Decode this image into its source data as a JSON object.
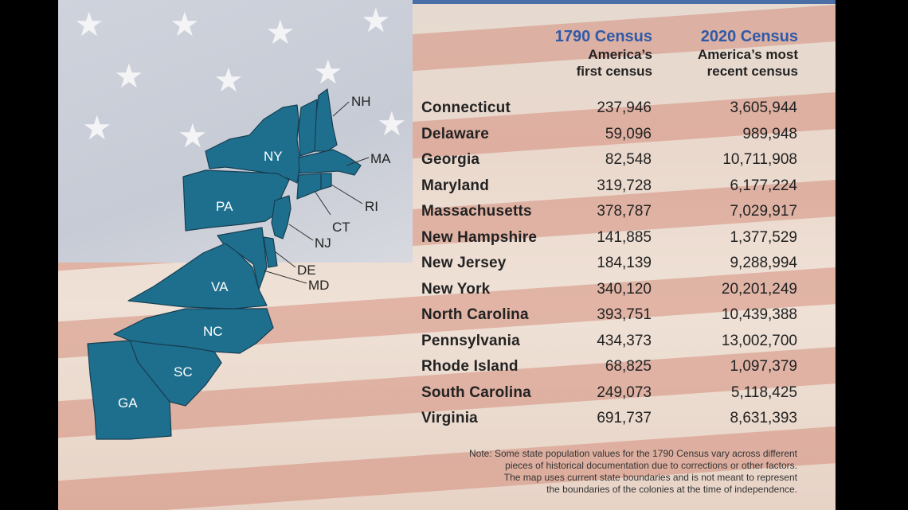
{
  "columns": {
    "c1790": {
      "year": "1790 Census",
      "line1": "America’s",
      "line2": "first census"
    },
    "c2020": {
      "year": "2020 Census",
      "line1": "America’s most",
      "line2": "recent census"
    }
  },
  "rows": [
    {
      "state": "Connecticut",
      "v1790": "237,946",
      "v2020": "3,605,944"
    },
    {
      "state": "Delaware",
      "v1790": "59,096",
      "v2020": "989,948"
    },
    {
      "state": "Georgia",
      "v1790": "82,548",
      "v2020": "10,711,908"
    },
    {
      "state": "Maryland",
      "v1790": "319,728",
      "v2020": "6,177,224"
    },
    {
      "state": "Massachusetts",
      "v1790": "378,787",
      "v2020": "7,029,917"
    },
    {
      "state": "New Hampshire",
      "v1790": "141,885",
      "v2020": "1,377,529"
    },
    {
      "state": "New Jersey",
      "v1790": "184,139",
      "v2020": "9,288,994"
    },
    {
      "state": "New York",
      "v1790": "340,120",
      "v2020": "20,201,249"
    },
    {
      "state": "North Carolina",
      "v1790": "393,751",
      "v2020": "10,439,388"
    },
    {
      "state": "Pennsylvania",
      "v1790": "434,373",
      "v2020": "13,002,700"
    },
    {
      "state": "Rhode Island",
      "v1790": "68,825",
      "v2020": "1,097,379"
    },
    {
      "state": "South Carolina",
      "v1790": "249,073",
      "v2020": "5,118,425"
    },
    {
      "state": "Virginia",
      "v1790": "691,737",
      "v2020": "8,631,393"
    }
  ],
  "map_labels": {
    "NH": "NH",
    "MA": "MA",
    "RI": "RI",
    "CT": "CT",
    "NJ": "NJ",
    "DE": "DE",
    "MD": "MD",
    "NY": "NY",
    "PA": "PA",
    "VA": "VA",
    "NC": "NC",
    "SC": "SC",
    "GA": "GA"
  },
  "note": {
    "lines": [
      "Note: Some state population values for the 1790 Census vary across different",
      "pieces of historical documentation due to corrections or other factors.",
      "The map uses current state boundaries and is not meant to represent",
      "the boundaries of the colonies at the time of independence."
    ]
  },
  "colors": {
    "map_fill": "#1e6f8e",
    "header_year": "#2f5aa8",
    "top_bar": "#4a6fa6",
    "text": "#222222"
  }
}
